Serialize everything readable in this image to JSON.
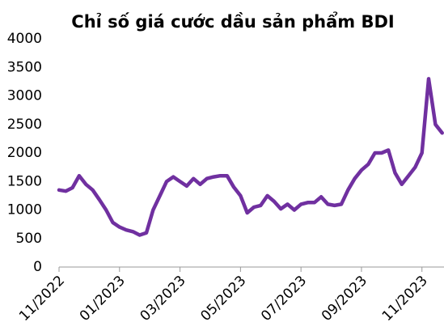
{
  "chart_data": {
    "type": "line",
    "title": "Chỉ số giá cước dầu sản phẩm BDI",
    "categories": [
      "11/2022",
      null,
      null,
      null,
      null,
      null,
      null,
      null,
      null,
      "01/2023",
      null,
      null,
      null,
      null,
      null,
      null,
      null,
      null,
      "03/2023",
      null,
      null,
      null,
      null,
      null,
      null,
      null,
      null,
      "05/2023",
      null,
      null,
      null,
      null,
      null,
      null,
      null,
      null,
      "07/2023",
      null,
      null,
      null,
      null,
      null,
      null,
      null,
      null,
      "09/2023",
      null,
      null,
      null,
      null,
      null,
      null,
      null,
      null,
      "11/2023",
      null,
      null,
      null
    ],
    "series": [
      {
        "name": "BDI",
        "color": "#7030a0",
        "values": [
          1350,
          1330,
          1390,
          1600,
          1450,
          1350,
          1180,
          1000,
          780,
          700,
          650,
          620,
          560,
          600,
          1000,
          1250,
          1500,
          1580,
          1500,
          1420,
          1550,
          1450,
          1550,
          1580,
          1600,
          1600,
          1400,
          1250,
          950,
          1050,
          1080,
          1250,
          1150,
          1020,
          1100,
          1000,
          1100,
          1130,
          1130,
          1230,
          1100,
          1080,
          1100,
          1350,
          1550,
          1700,
          1800,
          2000,
          2000,
          2050,
          1650,
          1450,
          1600,
          1750,
          2000,
          3300,
          2500,
          2350
        ]
      }
    ],
    "ylim": [
      0,
      4000
    ],
    "yticks": [
      0,
      500,
      1000,
      1500,
      2000,
      2500,
      3000,
      3500,
      4000
    ],
    "grid": false
  }
}
